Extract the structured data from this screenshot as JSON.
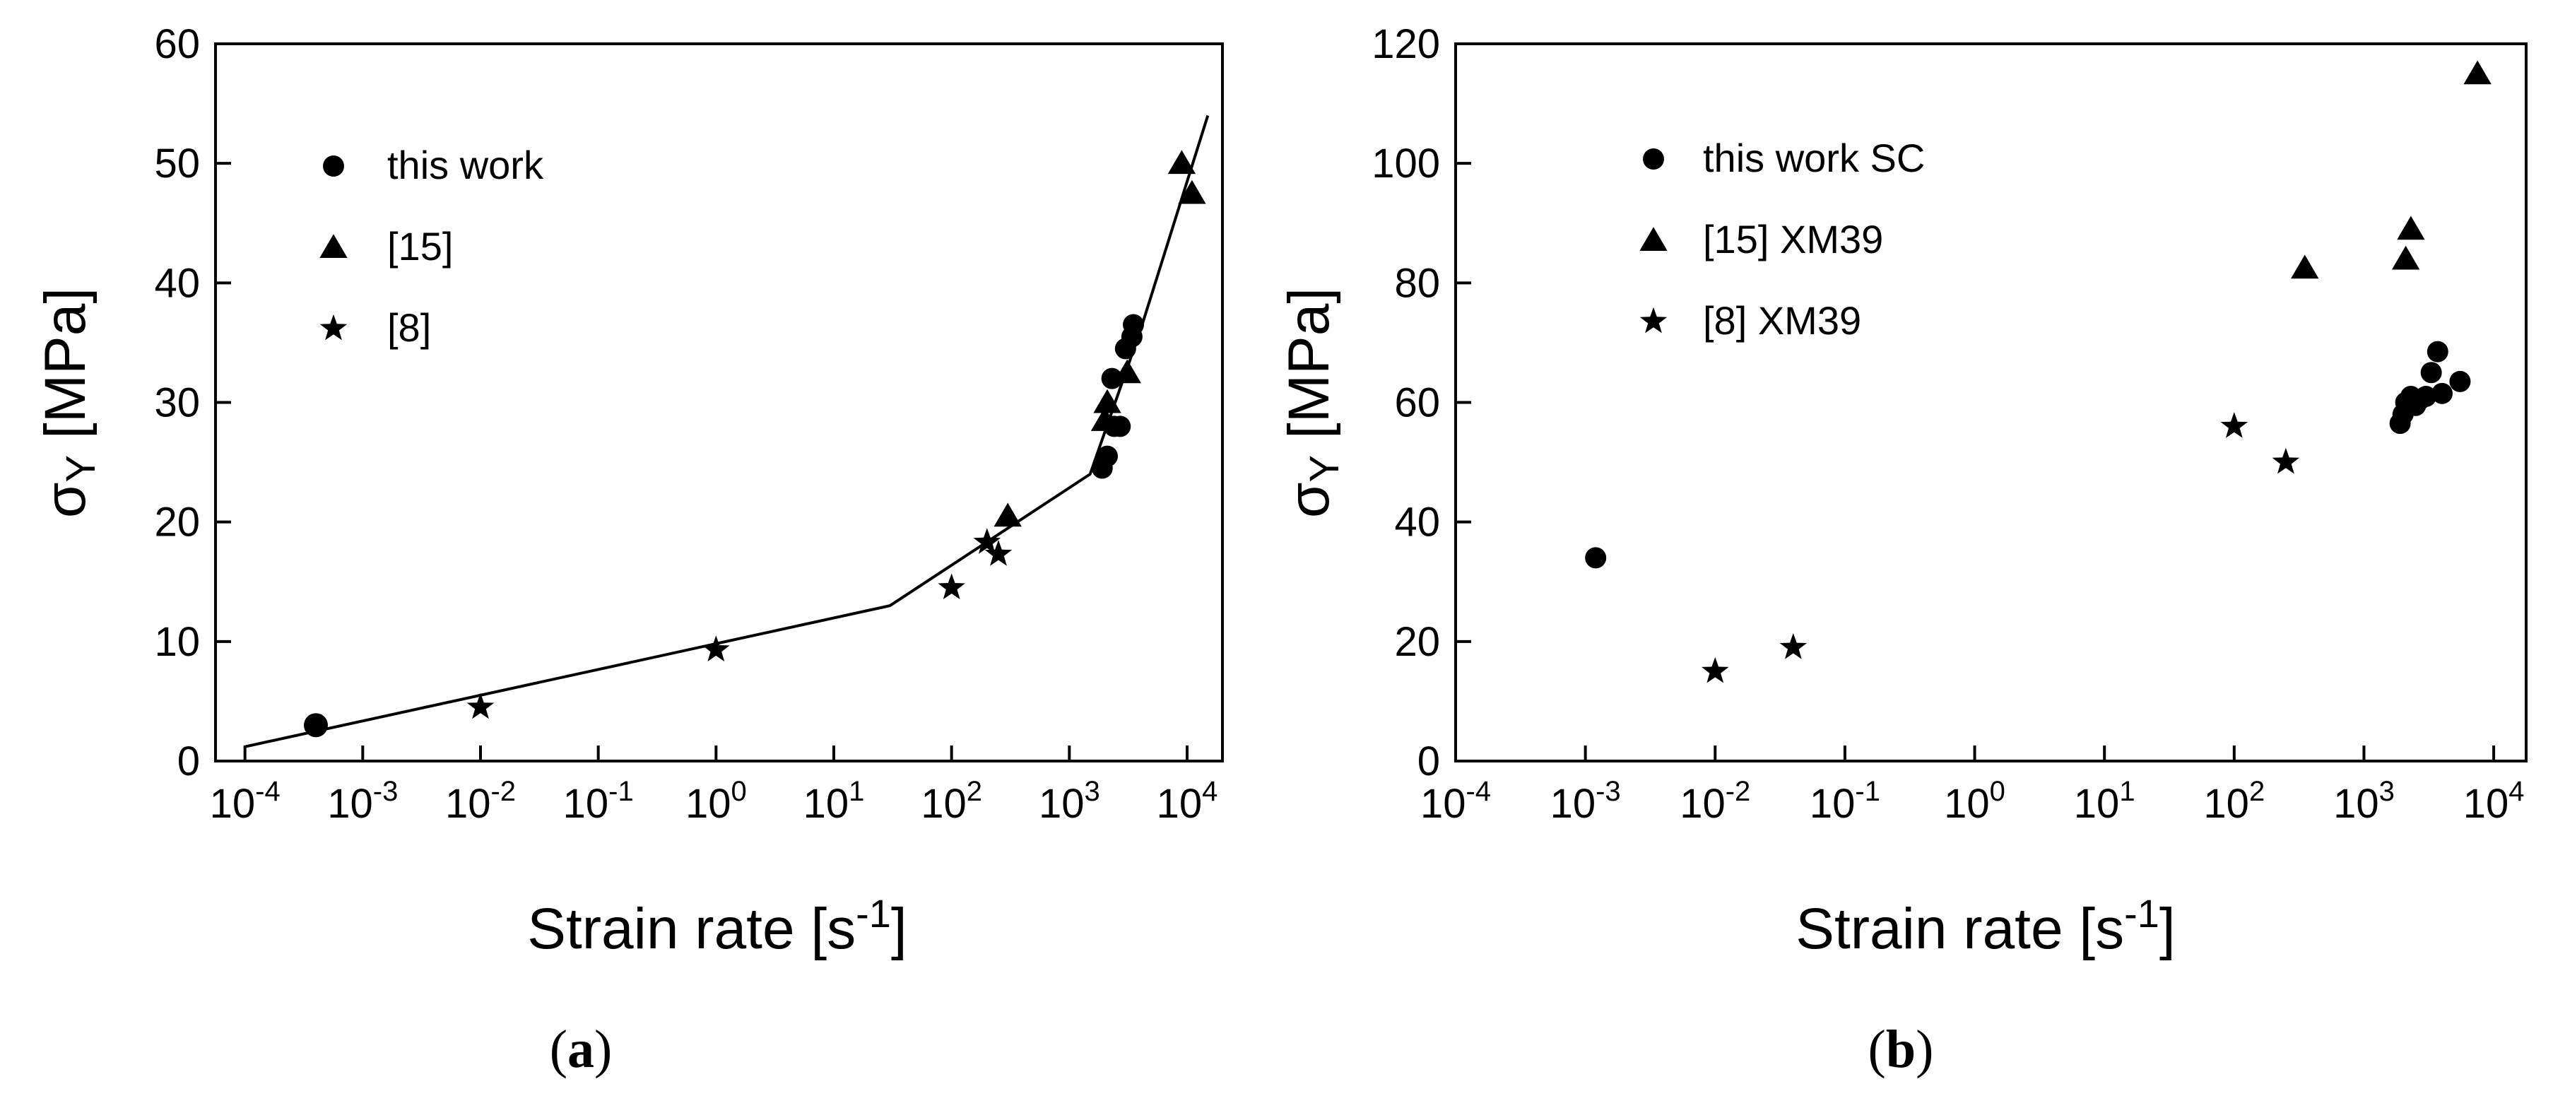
{
  "chart_data": [
    {
      "type": "scatter",
      "panel_label": "a",
      "xlabel": "Strain rate [s",
      "xlabel_sup": "-1",
      "xlabel_end": "]",
      "ylabel": "σ",
      "ylabel_sub": "Y",
      "ylabel_unit": " [MPa]",
      "xscale": "log",
      "xlim_exp": [
        -4,
        4
      ],
      "ylim": [
        0,
        60
      ],
      "yticks": [
        "0",
        "10",
        "20",
        "30",
        "40",
        "50",
        "60"
      ],
      "xticks": [
        {
          "base": "10",
          "exp": "-4"
        },
        {
          "base": "10",
          "exp": "-3"
        },
        {
          "base": "10",
          "exp": "-2"
        },
        {
          "base": "10",
          "exp": "-1"
        },
        {
          "base": "10",
          "exp": "0"
        },
        {
          "base": "10",
          "exp": "1"
        },
        {
          "base": "10",
          "exp": "2"
        },
        {
          "base": "10",
          "exp": "3"
        },
        {
          "base": "10",
          "exp": "4"
        }
      ],
      "legend": [
        {
          "marker": "circle",
          "label": "this work"
        },
        {
          "marker": "triangle",
          "label": "[15]"
        },
        {
          "marker": "star",
          "label": "[8]"
        }
      ],
      "series": [
        {
          "name": "this work",
          "marker": "circle",
          "points": [
            [
              0.0004,
              3
            ],
            [
              1900,
              24.5
            ],
            [
              2100,
              25.5
            ],
            [
              2400,
              28
            ],
            [
              2700,
              28
            ],
            [
              2300,
              32
            ],
            [
              3000,
              34.5
            ],
            [
              3400,
              35.5
            ],
            [
              3500,
              36.5
            ]
          ]
        },
        {
          "name": "[15]",
          "marker": "triangle",
          "points": [
            [
              300,
              20.5
            ],
            [
              2000,
              28.5
            ],
            [
              2100,
              30
            ],
            [
              3100,
              32.5
            ],
            [
              9000,
              50
            ],
            [
              11000,
              47.5
            ]
          ]
        },
        {
          "name": "[8]",
          "marker": "star",
          "points": [
            [
              0.01,
              4.5
            ],
            [
              1,
              9.3
            ],
            [
              100,
              14.5
            ],
            [
              200,
              18.3
            ],
            [
              250,
              17.3
            ]
          ]
        }
      ],
      "fit_line": [
        [
          0.0001,
          1.2
        ],
        [
          30,
          13
        ],
        [
          1500,
          24
        ],
        [
          4000,
          36
        ],
        [
          15000,
          54
        ]
      ]
    },
    {
      "type": "scatter",
      "panel_label": "b",
      "xlabel": "Strain rate [s",
      "xlabel_sup": "-1",
      "xlabel_end": "]",
      "ylabel": "σ",
      "ylabel_sub": "Y",
      "ylabel_unit": " [MPa]",
      "xscale": "log",
      "xlim_exp": [
        -4,
        4
      ],
      "ylim": [
        0,
        120
      ],
      "yticks": [
        "0",
        "20",
        "40",
        "60",
        "80",
        "100",
        "120"
      ],
      "xticks": [
        {
          "base": "10",
          "exp": "-4"
        },
        {
          "base": "10",
          "exp": "-3"
        },
        {
          "base": "10",
          "exp": "-2"
        },
        {
          "base": "10",
          "exp": "-1"
        },
        {
          "base": "10",
          "exp": "0"
        },
        {
          "base": "10",
          "exp": "1"
        },
        {
          "base": "10",
          "exp": "2"
        },
        {
          "base": "10",
          "exp": "3"
        },
        {
          "base": "10",
          "exp": "4"
        }
      ],
      "legend": [
        {
          "marker": "circle",
          "label": "this work SC"
        },
        {
          "marker": "triangle",
          "label": "[15] XM39"
        },
        {
          "marker": "star",
          "label": "[8] XM39"
        }
      ],
      "series": [
        {
          "name": "this work SC",
          "marker": "circle",
          "points": [
            [
              0.0012,
              34
            ],
            [
              1900,
              56.5
            ],
            [
              2000,
              58
            ],
            [
              2100,
              60
            ],
            [
              2300,
              61
            ],
            [
              2500,
              59.5
            ],
            [
              2700,
              60.5
            ],
            [
              3000,
              61
            ],
            [
              3300,
              65
            ],
            [
              3700,
              68.5
            ],
            [
              4000,
              61.5
            ],
            [
              5500,
              63.5
            ]
          ]
        },
        {
          "name": "[15] XM39",
          "marker": "triangle",
          "points": [
            [
              350,
              82.5
            ],
            [
              2100,
              84
            ],
            [
              2300,
              89
            ],
            [
              7500,
              115
            ]
          ]
        },
        {
          "name": "[8] XM39",
          "marker": "star",
          "points": [
            [
              0.01,
              15
            ],
            [
              0.04,
              19
            ],
            [
              100,
              56
            ],
            [
              250,
              50
            ]
          ]
        }
      ]
    }
  ]
}
